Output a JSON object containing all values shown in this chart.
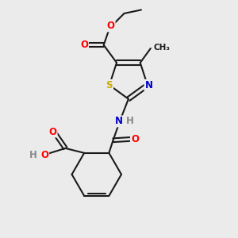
{
  "background_color": "#ebebeb",
  "bond_color": "#1a1a1a",
  "bond_width": 1.5,
  "atom_colors": {
    "O": "#ff0000",
    "N": "#0000cc",
    "S": "#ccaa00",
    "C": "#1a1a1a",
    "H": "#888888"
  },
  "font_size": 8.5,
  "fig_width": 3.0,
  "fig_height": 3.0,
  "dpi": 100
}
